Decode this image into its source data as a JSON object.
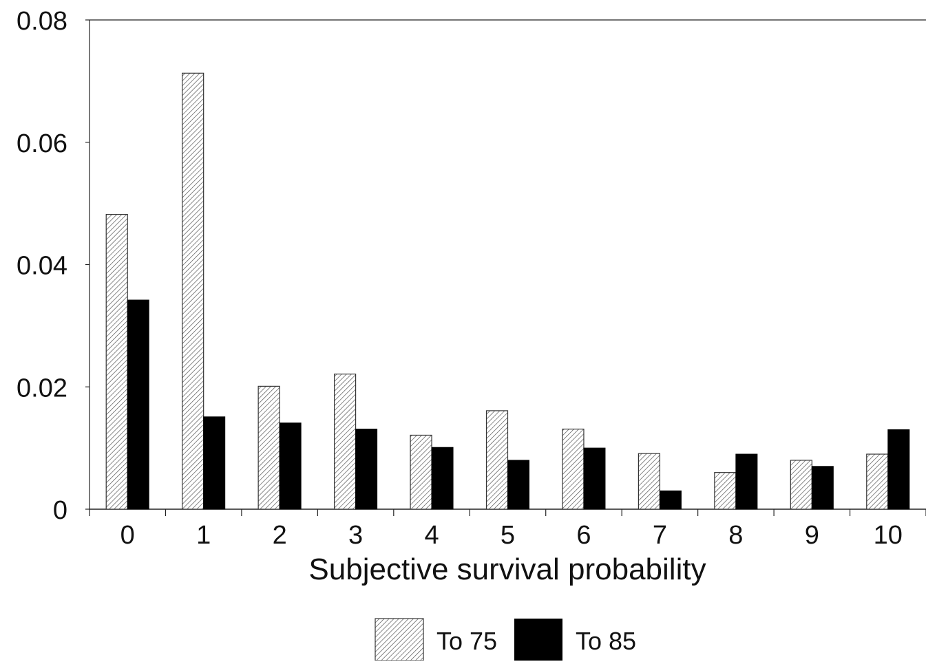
{
  "chart_data": {
    "type": "bar",
    "title": "",
    "xlabel": "Subjective survival probability",
    "ylabel": "",
    "categories": [
      "0",
      "1",
      "2",
      "3",
      "4",
      "5",
      "6",
      "7",
      "8",
      "9",
      "10"
    ],
    "series": [
      {
        "name": "To 75",
        "pattern": "hatched",
        "color": "#ffffff",
        "values": [
          0.0482,
          0.0713,
          0.0201,
          0.0221,
          0.0121,
          0.0161,
          0.0131,
          0.0091,
          0.006,
          0.008,
          0.009
        ]
      },
      {
        "name": "To 85",
        "pattern": "solid",
        "color": "#000000",
        "values": [
          0.0342,
          0.0151,
          0.0141,
          0.0131,
          0.0101,
          0.008,
          0.01,
          0.003,
          0.009,
          0.007,
          0.013
        ]
      }
    ],
    "ylim": [
      0,
      0.08
    ],
    "yticks": [
      "0",
      "0.02",
      "0.04",
      "0.06",
      "0.08"
    ],
    "ytick_values": [
      0,
      0.02,
      0.04,
      0.06,
      0.08
    ],
    "grid": false,
    "legend": {
      "position": "bottom-center",
      "items": [
        "To 75",
        "To 85"
      ]
    }
  }
}
